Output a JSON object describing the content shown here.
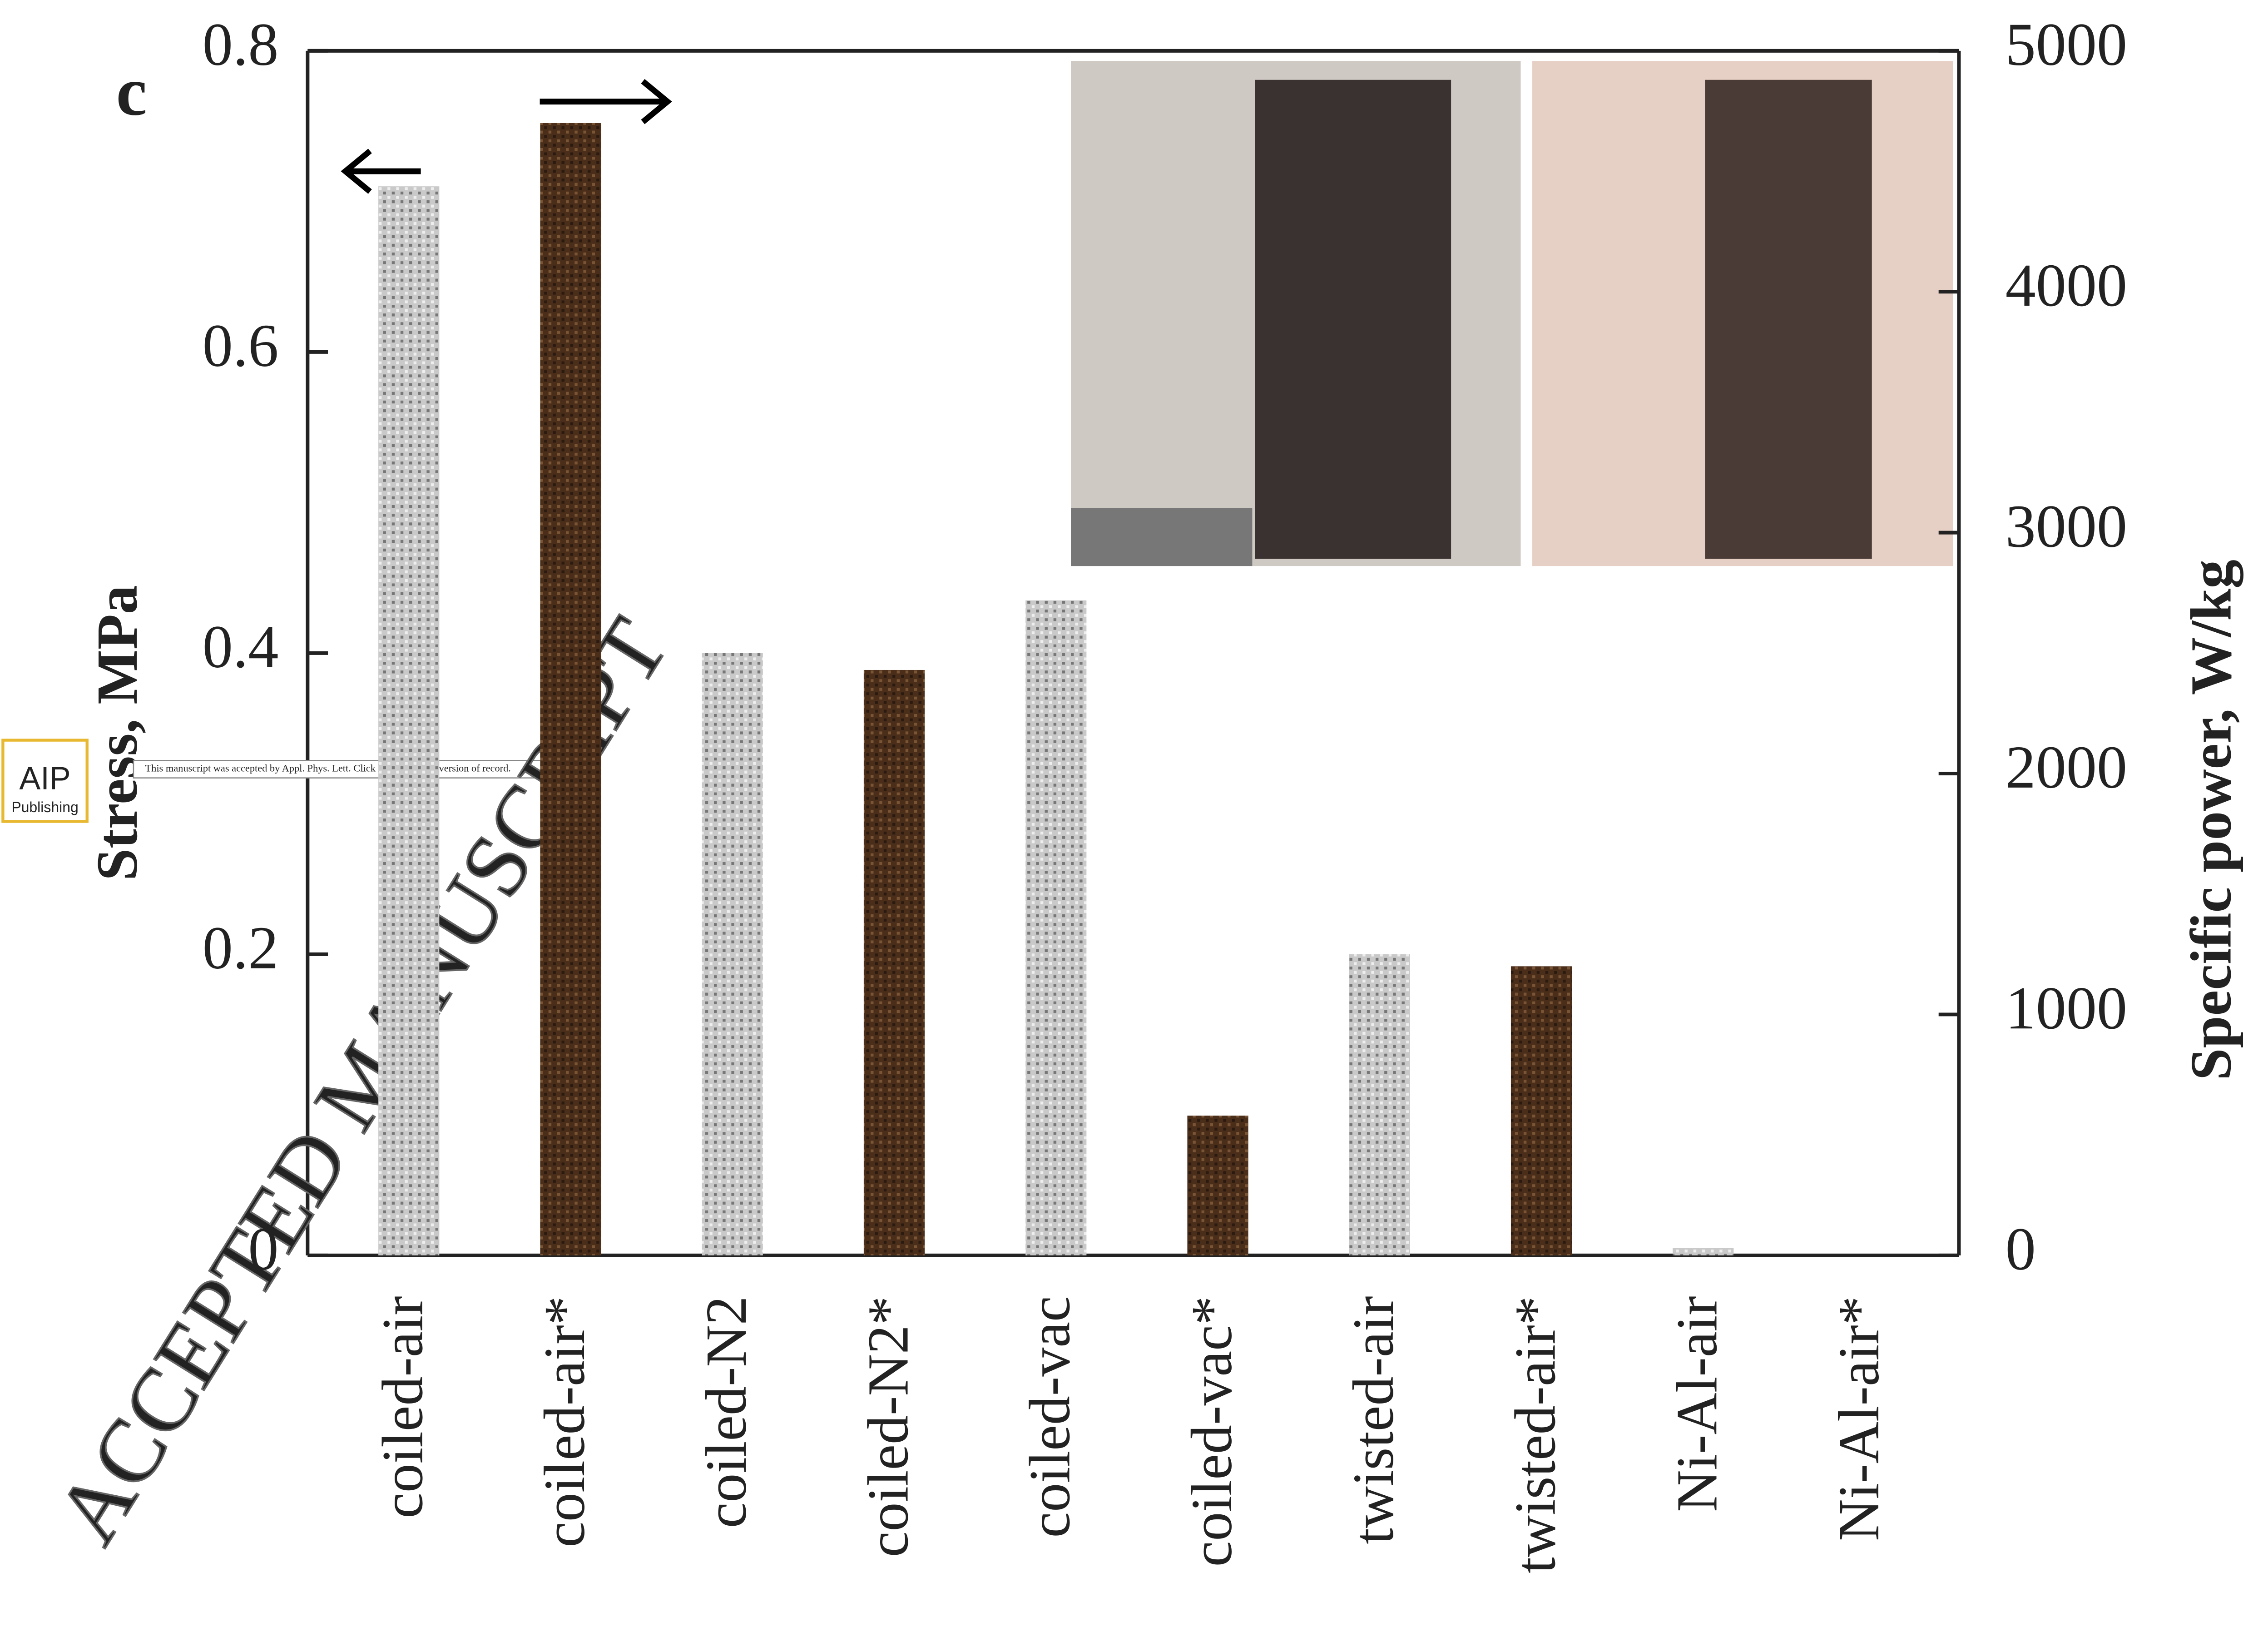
{
  "chart_data": {
    "type": "bar",
    "panel_label": "c",
    "ylabel": "Stress, MPa",
    "y2label": "Specific power, W/kg",
    "categories": [
      "coiled-air",
      "coiled-air*",
      "coiled-N2",
      "coiled-N2*",
      "coiled-vac",
      "coiled-vac*",
      "twisted-air",
      "twisted-air*",
      "Ni-Al-air",
      "Ni-Al-air*"
    ],
    "series": [
      {
        "color": "#a8a8a8",
        "values": [
          0.71,
          null,
          0.4,
          null,
          0.435,
          null,
          0.2,
          null,
          0.005,
          null
        ]
      },
      {
        "color": "#5b3a22",
        "axis": "y2",
        "values": [
          null,
          4700,
          null,
          2430,
          null,
          580,
          null,
          1200,
          null,
          0
        ]
      }
    ],
    "ylim": [
      0,
      0.8
    ],
    "yticks": [
      0,
      0.2,
      0.4,
      0.6,
      0.8
    ],
    "y2lim": [
      0,
      5000
    ],
    "y2ticks": [
      0,
      1000,
      2000,
      3000,
      4000,
      5000
    ],
    "grid": false
  },
  "publisher": {
    "logo_top": "AIP",
    "logo_bottom": "Publishing"
  },
  "banner": "This manuscript was accepted by Appl. Phys. Lett. Click here to see the version of record.",
  "watermark": "ACCEPTED MANUSCRIPT"
}
